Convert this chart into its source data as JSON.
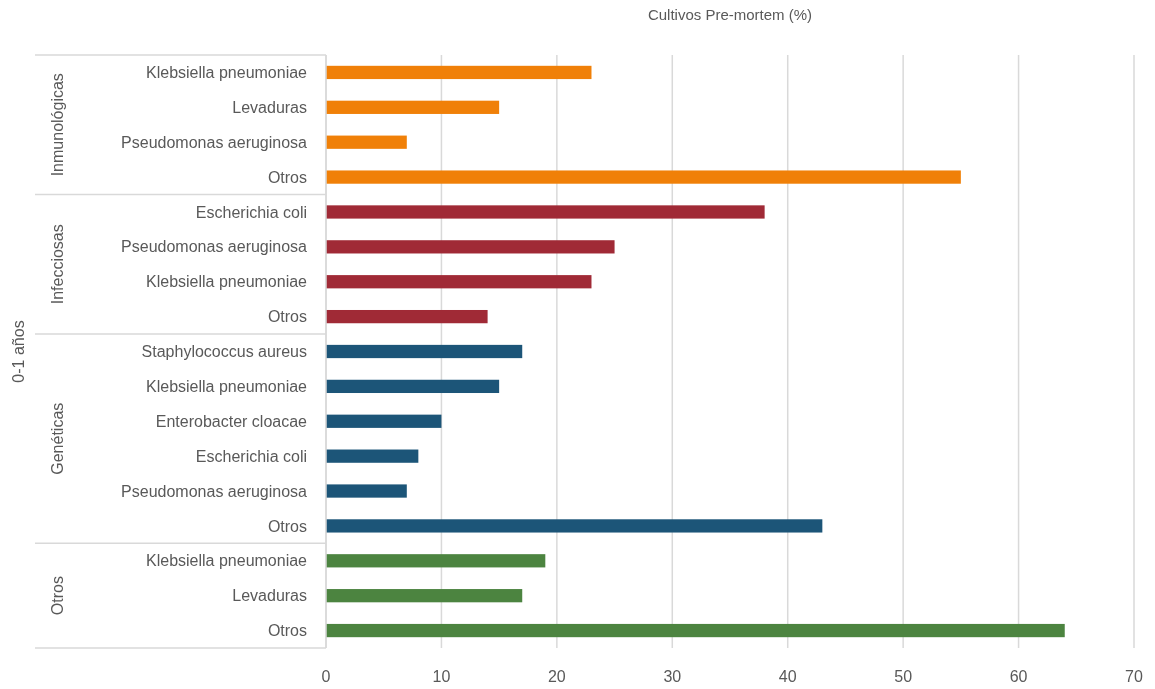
{
  "chart_data": {
    "type": "bar",
    "orientation": "horizontal",
    "title": "Cultivos Pre-mortem (%)",
    "categories": [
      "Klebsiella pneumoniae",
      "Levaduras",
      "Pseudomonas aeruginosa",
      "Otros",
      "Escherichia coli",
      "Pseudomonas aeruginosa",
      "Klebsiella pneumoniae",
      "Otros",
      "Staphylococcus aureus",
      "Klebsiella pneumoniae",
      "Enterobacter cloacae ",
      "Escherichia coli",
      "Pseudomonas aeruginosa",
      "Otros",
      "Klebsiella pneumoniae",
      "Levaduras",
      "Otros"
    ],
    "values": [
      23,
      15,
      7,
      55,
      38,
      25,
      23,
      14,
      17,
      15,
      10,
      8,
      7,
      43,
      19,
      17,
      64
    ],
    "colors": [
      "#f08008",
      "#f08008",
      "#f08008",
      "#f08008",
      "#a02a36",
      "#a02a36",
      "#a02a36",
      "#a02a36",
      "#1c5578",
      "#1c5578",
      "#1c5578",
      "#1c5578",
      "#1c5578",
      "#1c5578",
      "#4c8440",
      "#4c8440",
      "#4c8440"
    ],
    "annotations": [
      "Inmunológicas",
      "Infecciosas",
      "Genéticas",
      "Otros",
      "0-1 años"
    ],
    "xlim": [
      0,
      70
    ],
    "xticks": [
      0,
      10,
      20,
      30,
      40,
      50,
      60,
      70
    ],
    "grid": "x"
  }
}
